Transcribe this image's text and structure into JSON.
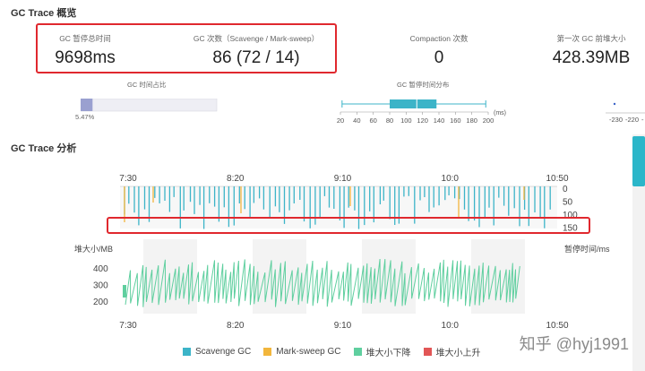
{
  "overview": {
    "title": "GC Trace 概览",
    "stats": [
      {
        "label": "GC 暂停总时间",
        "value": "9698ms"
      },
      {
        "label": "GC 次数（Scavenge / Mark-sweep）",
        "value": "86 (72 / 14)"
      },
      {
        "label": "Compaction 次数",
        "value": "0"
      },
      {
        "label": "第一次 GC 前堆大小",
        "value": "428.39MB"
      }
    ],
    "time_ratio": {
      "label": "GC 时间占比",
      "percent": "5.47%",
      "fraction": 0.0547
    },
    "pause_dist": {
      "label": "GC 暂停时间分布",
      "unit": "(ms)",
      "ticks": [
        "20",
        "40",
        "60",
        "80",
        "100",
        "120",
        "140",
        "160",
        "180",
        "200"
      ],
      "box": {
        "min": 22,
        "q1": 80,
        "median": 113,
        "q3": 137,
        "max": 197
      }
    },
    "heap_ticks": [
      "-230",
      "-220",
      "-"
    ]
  },
  "analysis": {
    "title": "GC Trace 分析",
    "time_ticks": [
      "7:30",
      "8:20",
      "9:10",
      "10:0",
      "10:50"
    ],
    "pause_axis_ticks": [
      "0",
      "50",
      "100",
      "150"
    ],
    "pause_axis_label": "暂停时间/ms",
    "heap_axis_label": "堆大小/MB",
    "heap_axis_ticks": [
      "400",
      "300",
      "200"
    ],
    "legend": [
      {
        "label": "Scavenge GC",
        "color": "#3cb4c8"
      },
      {
        "label": "Mark-sweep GC",
        "color": "#f2b63c"
      },
      {
        "label": "堆大小下降",
        "color": "#5fcf9f"
      },
      {
        "label": "堆大小上升",
        "color": "#e25656"
      }
    ]
  },
  "watermark": "知乎 @hyj1991"
}
